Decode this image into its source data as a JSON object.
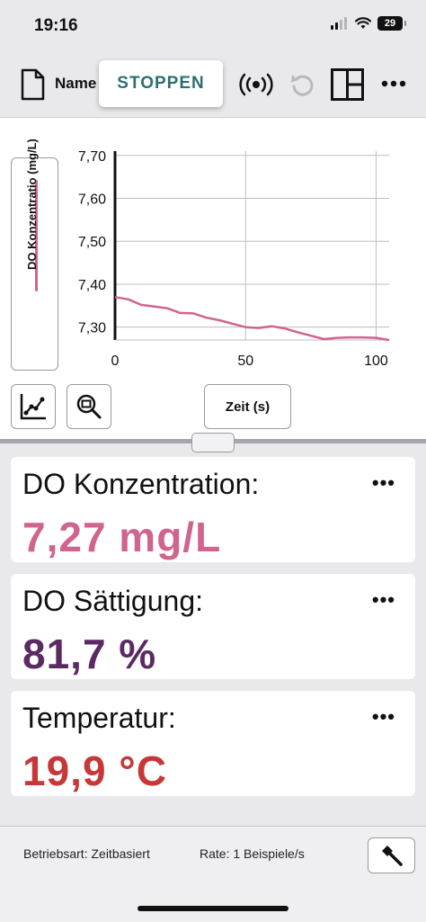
{
  "status_bar": {
    "time": "19:16",
    "battery": "29"
  },
  "toolbar": {
    "name_label": "Name",
    "stop_label": "STOPPEN",
    "icons": [
      "file-icon",
      "sensor-broadcast-icon",
      "undo-icon",
      "layout-icon",
      "more-icon"
    ]
  },
  "graph": {
    "y_axis_label": "DO Konzentratio (mg/L)",
    "x_axis_button": "Zeit (s)",
    "icons": [
      "graph-tools-icon",
      "zoom-icon"
    ],
    "series_color": "#d0648f",
    "chart_data": {
      "type": "line",
      "title": "",
      "xlabel": "Zeit (s)",
      "ylabel": "DO Konzentratio (mg/L)",
      "xlim": [
        0,
        105
      ],
      "ylim": [
        7.27,
        7.71
      ],
      "x_ticks": [
        "0",
        "50",
        "100"
      ],
      "y_ticks": [
        "7,70",
        "7,60",
        "7,50",
        "7,40",
        "7,30"
      ],
      "grid": true,
      "series": [
        {
          "x": [
            0,
            5,
            10,
            15,
            20,
            25,
            30,
            35,
            40,
            45,
            50,
            55,
            60,
            65,
            70,
            75,
            80,
            85,
            90,
            95,
            100,
            105
          ],
          "y": [
            7.37,
            7.365,
            7.352,
            7.348,
            7.344,
            7.333,
            7.332,
            7.322,
            7.316,
            7.308,
            7.3,
            7.298,
            7.302,
            7.297,
            7.288,
            7.28,
            7.272,
            7.275,
            7.276,
            7.276,
            7.275,
            7.27
          ]
        }
      ]
    }
  },
  "meters": [
    {
      "name": "DO Konzentration:",
      "value": "7,27 mg/L",
      "color": "#d0648f"
    },
    {
      "name": "DO Sättigung:",
      "value": "81,7 %",
      "color": "#5c2a63"
    },
    {
      "name": "Temperatur:",
      "value": "19,9 °C",
      "color": "#c73737"
    }
  ],
  "footer": {
    "mode": "Betriebsart: Zeitbasiert",
    "rate": "Rate: 1 Beispiele/s",
    "tool_icon": "wrench-icon"
  }
}
